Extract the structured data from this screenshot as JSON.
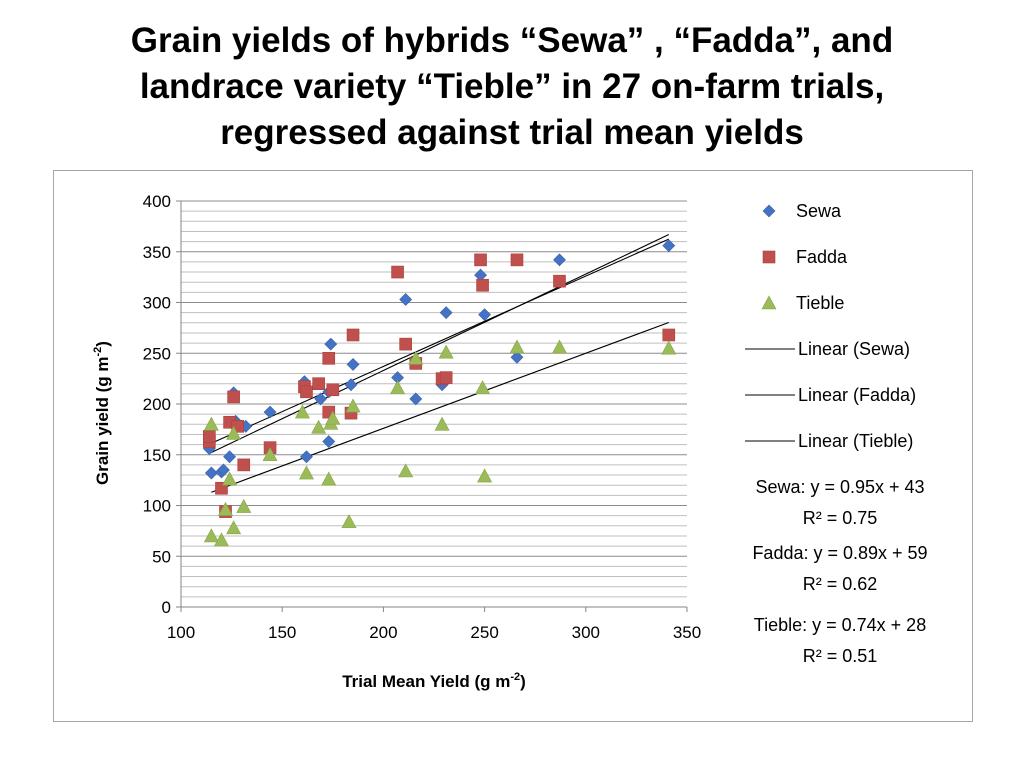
{
  "title_lines": [
    "Grain yields of hybrids “Sewa” , “Fadda”, and",
    "landrace variety “Tieble”  in 27 on-farm trials,",
    "regressed against trial mean yields"
  ],
  "colors": {
    "Sewa": "#4472c4",
    "Fadda": "#c0504d",
    "Tieble": "#9bbb59",
    "trendline": "#000000",
    "gridline": "#bfbfbf"
  },
  "chart_data": {
    "type": "scatter",
    "xlabel": "Trial Mean Yield (g m",
    "xlabel_sup": "-2",
    "xlabel_end": ")",
    "ylabel": "Grain yield (g m",
    "ylabel_sup": "-2",
    "ylabel_end": ")",
    "xlim": [
      100,
      350
    ],
    "ylim": [
      0,
      400
    ],
    "x_ticks": [
      100,
      150,
      200,
      250,
      300,
      350
    ],
    "y_ticks": [
      0,
      50,
      100,
      150,
      200,
      250,
      300,
      350,
      400
    ],
    "grid": "horizontal",
    "legend_position": "right",
    "series": [
      {
        "name": "Sewa",
        "marker": "diamond",
        "points": [
          [
            114,
            156
          ],
          [
            115,
            132
          ],
          [
            120,
            133
          ],
          [
            121,
            135
          ],
          [
            124,
            148
          ],
          [
            126,
            211
          ],
          [
            127,
            183
          ],
          [
            132,
            178
          ],
          [
            144,
            192
          ],
          [
            161,
            222
          ],
          [
            162,
            148
          ],
          [
            169,
            205
          ],
          [
            173,
            163
          ],
          [
            174,
            259
          ],
          [
            184,
            219
          ],
          [
            185,
            239
          ],
          [
            207,
            226
          ],
          [
            211,
            303
          ],
          [
            216,
            205
          ],
          [
            229,
            219
          ],
          [
            231,
            290
          ],
          [
            248,
            327
          ],
          [
            250,
            288
          ],
          [
            266,
            246
          ],
          [
            287,
            342
          ],
          [
            341,
            356
          ],
          [
            173,
            212
          ]
        ]
      },
      {
        "name": "Fadda",
        "marker": "square",
        "points": [
          [
            114,
            163
          ],
          [
            114,
            168
          ],
          [
            120,
            117
          ],
          [
            122,
            94
          ],
          [
            124,
            182
          ],
          [
            126,
            207
          ],
          [
            128,
            178
          ],
          [
            131,
            140
          ],
          [
            144,
            157
          ],
          [
            161,
            217
          ],
          [
            162,
            212
          ],
          [
            168,
            220
          ],
          [
            173,
            192
          ],
          [
            173,
            245
          ],
          [
            175,
            214
          ],
          [
            184,
            191
          ],
          [
            185,
            268
          ],
          [
            207,
            330
          ],
          [
            211,
            259
          ],
          [
            216,
            240
          ],
          [
            229,
            225
          ],
          [
            231,
            226
          ],
          [
            248,
            342
          ],
          [
            249,
            317
          ],
          [
            266,
            342
          ],
          [
            287,
            321
          ],
          [
            341,
            268
          ]
        ]
      },
      {
        "name": "Tieble",
        "marker": "triangle",
        "points": [
          [
            115,
            70
          ],
          [
            115,
            180
          ],
          [
            120,
            66
          ],
          [
            122,
            96
          ],
          [
            124,
            126
          ],
          [
            126,
            171
          ],
          [
            126,
            78
          ],
          [
            131,
            99
          ],
          [
            144,
            150
          ],
          [
            160,
            192
          ],
          [
            162,
            132
          ],
          [
            168,
            177
          ],
          [
            173,
            126
          ],
          [
            174,
            181
          ],
          [
            175,
            186
          ],
          [
            183,
            84
          ],
          [
            185,
            198
          ],
          [
            207,
            216
          ],
          [
            211,
            134
          ],
          [
            216,
            245
          ],
          [
            229,
            180
          ],
          [
            231,
            251
          ],
          [
            249,
            216
          ],
          [
            250,
            129
          ],
          [
            266,
            256
          ],
          [
            287,
            256
          ],
          [
            341,
            255
          ]
        ]
      }
    ],
    "trendlines": [
      {
        "name": "Linear (Sewa)",
        "series": "Sewa",
        "slope": 0.95,
        "intercept": 43,
        "x_range": [
          115,
          341
        ],
        "equation": "Sewa: y = 0.95x + 43",
        "r2": "R² = 0.75"
      },
      {
        "name": "Linear (Fadda)",
        "series": "Fadda",
        "slope": 0.89,
        "intercept": 59,
        "x_range": [
          115,
          341
        ],
        "equation": "Fadda: y = 0.89x + 59",
        "r2": "R² = 0.62"
      },
      {
        "name": "Linear (Tieble)",
        "series": "Tieble",
        "slope": 0.74,
        "intercept": 28,
        "x_range": [
          115,
          341
        ],
        "equation": "Tieble: y = 0.74x + 28",
        "r2": "R² = 0.51"
      }
    ]
  }
}
